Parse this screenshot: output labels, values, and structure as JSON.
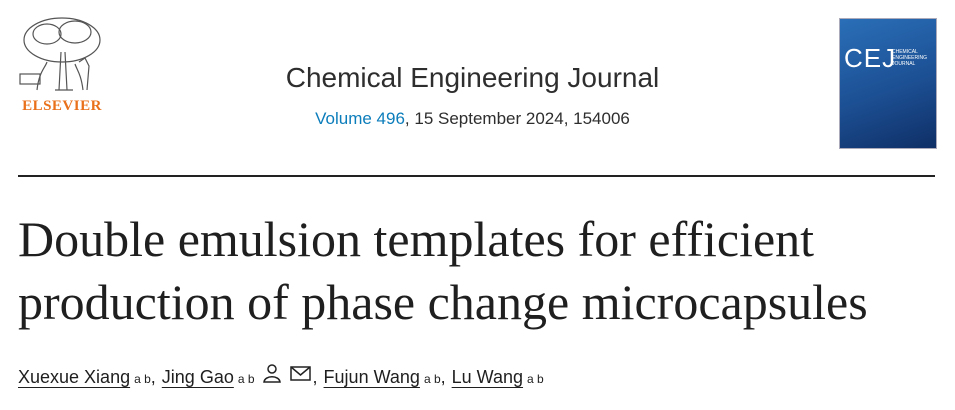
{
  "publisher": "ELSEVIER",
  "journal": {
    "name": "Chemical Engineering Journal",
    "volume": "Volume 496",
    "issue_info": ", 15 September 2024, 154006"
  },
  "cover": {
    "acronym": "CEJ",
    "full_name": "CHEMICAL ENGINEERING JOURNAL"
  },
  "article": {
    "title_lines": [
      "Double emulsion templates for efficient",
      "production of phase change microcapsules"
    ]
  },
  "author_separator": ",",
  "authors": [
    {
      "name": "Xuexue Xiang",
      "affiliations": "a b"
    },
    {
      "name": "Jing Gao",
      "affiliations": "a b"
    },
    {
      "name": "Fujun Wang",
      "affiliations": "a b"
    },
    {
      "name": "Lu Wang",
      "affiliations": "a b"
    }
  ]
}
